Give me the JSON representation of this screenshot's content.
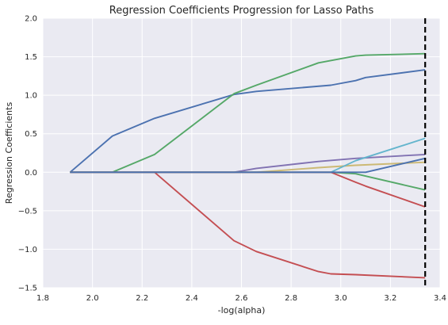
{
  "chart_data": {
    "type": "line",
    "title": "Regression Coefficients Progression for Lasso Paths",
    "xlabel": "-log(alpha)",
    "ylabel": "Regression Coefficients",
    "xlim": [
      1.8,
      3.4
    ],
    "ylim": [
      -1.5,
      2.0
    ],
    "xticks": [
      "1.8",
      "2.0",
      "2.2",
      "2.4",
      "2.6",
      "2.8",
      "3.0",
      "3.2",
      "3.4"
    ],
    "yticks": [
      "2.0",
      "1.5",
      "1.0",
      "0.5",
      "0.0",
      "−0.5",
      "−1.0",
      "−1.5"
    ],
    "grid": true,
    "background": "#eaeaf2",
    "vline": {
      "x": 3.34,
      "style": "dashed",
      "color": "#000000"
    },
    "series": [
      {
        "color": "#4c72b0",
        "x": [
          1.91,
          2.08,
          2.25,
          2.57,
          2.66,
          2.96,
          3.06,
          3.1,
          3.34
        ],
        "y": [
          0.0,
          0.47,
          0.7,
          1.01,
          1.05,
          1.13,
          1.19,
          1.23,
          1.33
        ]
      },
      {
        "color": "#55a868",
        "x": [
          1.91,
          2.08,
          2.25,
          2.57,
          2.66,
          2.91,
          3.06,
          3.1,
          3.34
        ],
        "y": [
          0.0,
          0.0,
          0.23,
          1.02,
          1.13,
          1.42,
          1.51,
          1.52,
          1.54
        ]
      },
      {
        "color": "#c44e52",
        "x": [
          1.91,
          2.08,
          2.25,
          2.57,
          2.66,
          2.91,
          2.96,
          3.06,
          3.34
        ],
        "y": [
          0.0,
          0.0,
          0.0,
          -0.89,
          -1.03,
          -1.29,
          -1.32,
          -1.33,
          -1.37
        ]
      },
      {
        "color": "#8172b2",
        "x": [
          1.91,
          2.57,
          2.66,
          2.91,
          3.06,
          3.34
        ],
        "y": [
          0.0,
          0.0,
          0.05,
          0.14,
          0.18,
          0.23
        ]
      },
      {
        "color": "#ccb974",
        "x": [
          1.91,
          2.66,
          2.91,
          3.06,
          3.34
        ],
        "y": [
          0.0,
          0.0,
          0.06,
          0.09,
          0.13
        ]
      },
      {
        "color": "#64b5cd",
        "x": [
          1.91,
          2.96,
          3.06,
          3.34
        ],
        "y": [
          0.0,
          0.0,
          0.15,
          0.44
        ]
      },
      {
        "color": "#55a868",
        "x": [
          1.91,
          2.96,
          3.06,
          3.34
        ],
        "y": [
          0.0,
          0.0,
          -0.02,
          -0.23
        ]
      },
      {
        "color": "#c44e52",
        "x": [
          1.91,
          2.96,
          3.06,
          3.1,
          3.34
        ],
        "y": [
          0.0,
          0.0,
          -0.13,
          -0.18,
          -0.45
        ]
      },
      {
        "color": "#4c72b0",
        "x": [
          1.91,
          3.1,
          3.34
        ],
        "y": [
          0.0,
          0.0,
          0.18
        ]
      }
    ]
  }
}
